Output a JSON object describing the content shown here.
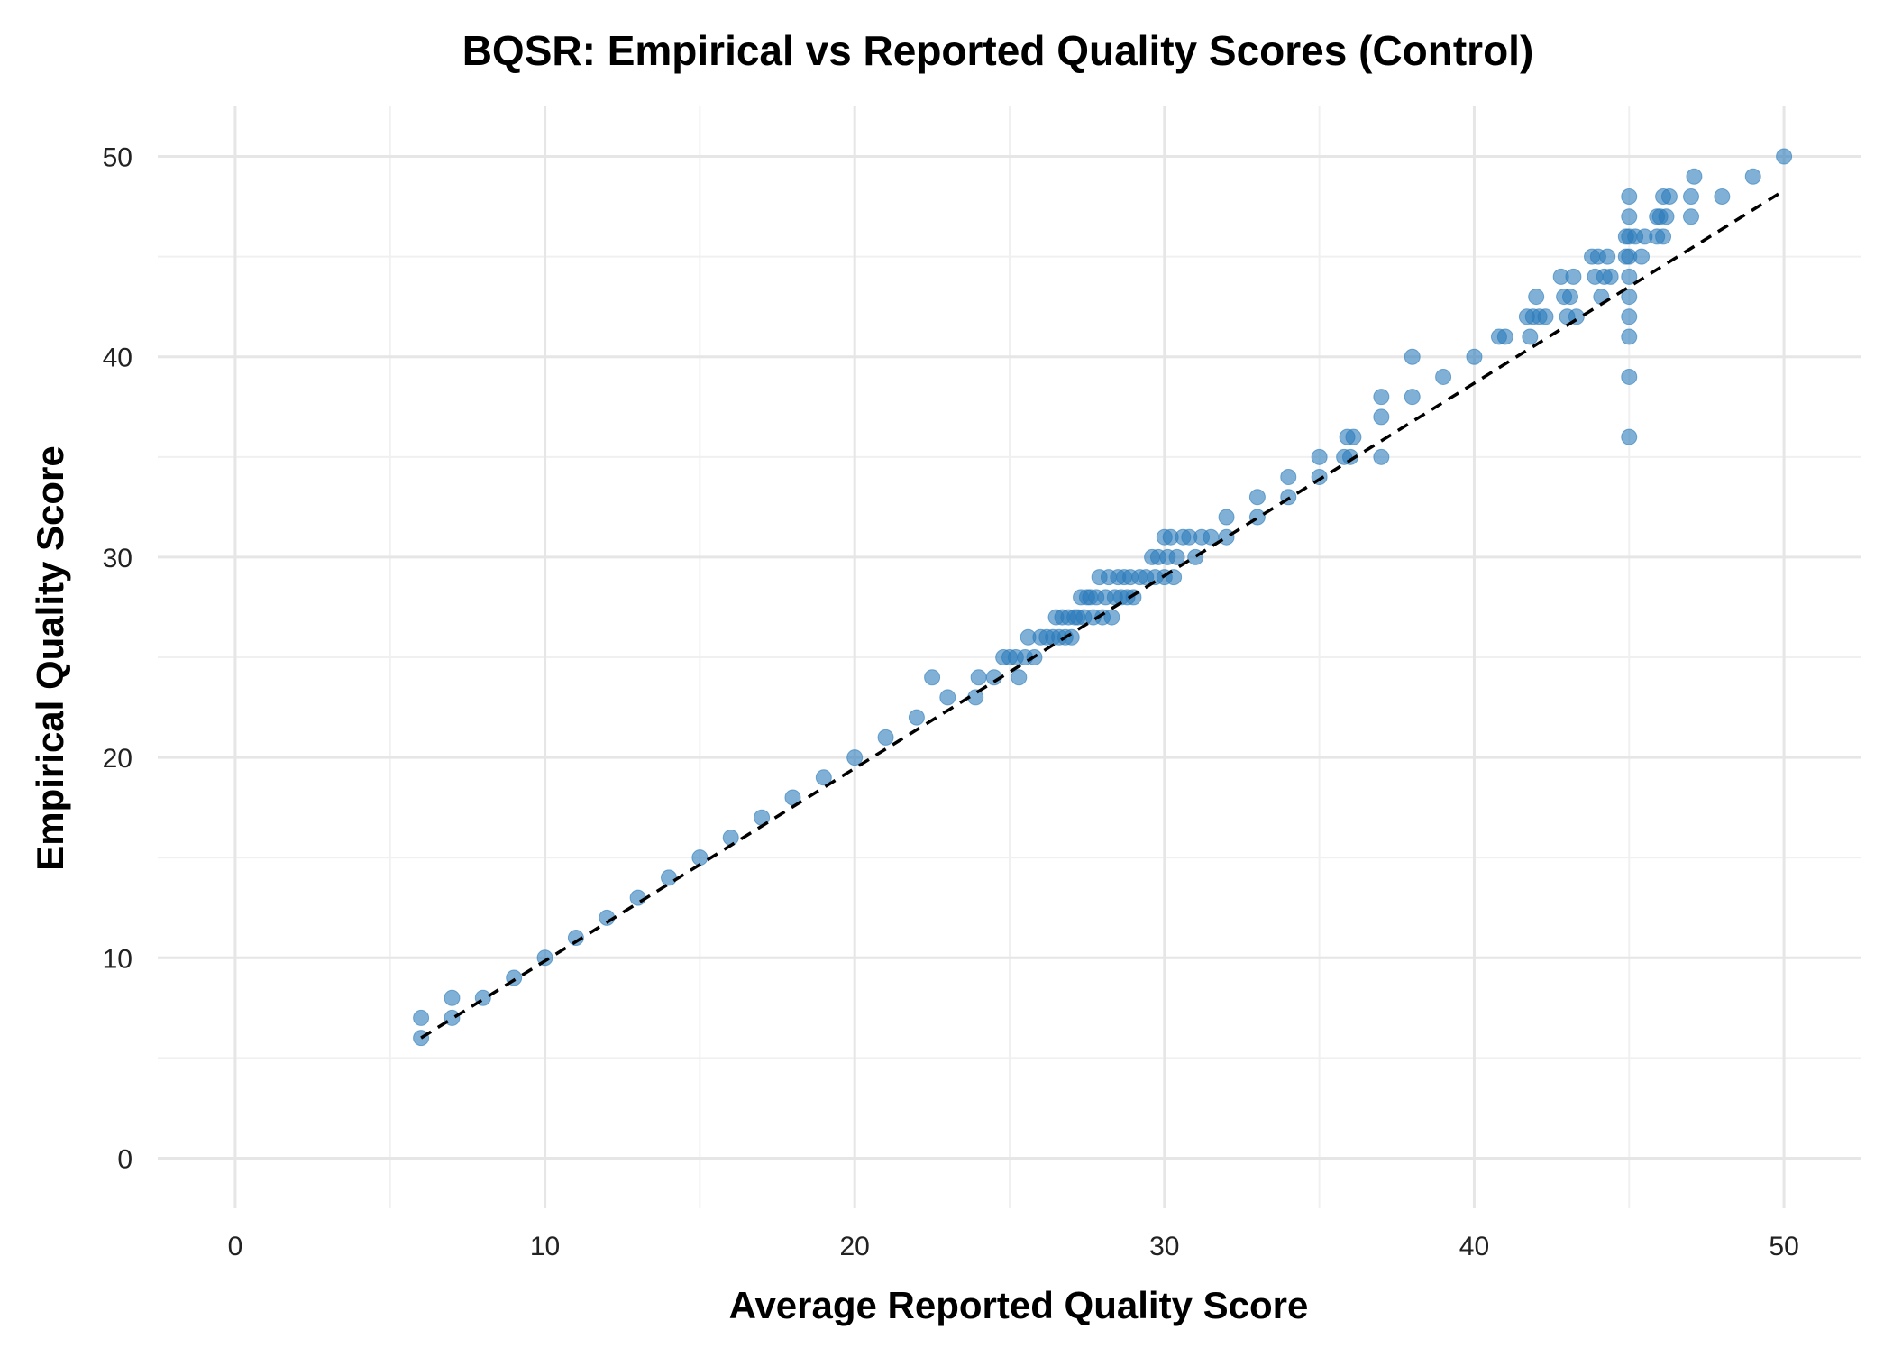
{
  "chart_data": {
    "type": "scatter",
    "title": "BQSR: Empirical vs Reported Quality Scores (Control)",
    "xlabel": "Average Reported Quality Score",
    "ylabel": "Empirical Quality Score",
    "xlim": [
      -2.5,
      52.5
    ],
    "ylim": [
      -2.5,
      52.5
    ],
    "x_ticks": [
      0,
      10,
      20,
      30,
      40,
      50
    ],
    "y_ticks": [
      0,
      10,
      20,
      30,
      40,
      50
    ],
    "x_tick_labels": [
      "0",
      "10",
      "20",
      "30",
      "40",
      "50"
    ],
    "y_tick_labels": [
      "0",
      "10",
      "20",
      "30",
      "40",
      "50"
    ],
    "grid": true,
    "legend": "none",
    "point_color": "#2b7bba",
    "reference_line": {
      "style": "dashed",
      "color": "#000000",
      "x": [
        6,
        50
      ],
      "y": [
        6,
        48.3
      ]
    },
    "points": [
      [
        6,
        6
      ],
      [
        6,
        7
      ],
      [
        7,
        7
      ],
      [
        7,
        8
      ],
      [
        8,
        8
      ],
      [
        9,
        9
      ],
      [
        10,
        10
      ],
      [
        11,
        11
      ],
      [
        12,
        12
      ],
      [
        13,
        13
      ],
      [
        14,
        14
      ],
      [
        15,
        15
      ],
      [
        16,
        16
      ],
      [
        17,
        17
      ],
      [
        18,
        18
      ],
      [
        19,
        19
      ],
      [
        20,
        20
      ],
      [
        21,
        21
      ],
      [
        22,
        22
      ],
      [
        22.5,
        24
      ],
      [
        23,
        23
      ],
      [
        23.9,
        23
      ],
      [
        24,
        24
      ],
      [
        24.5,
        24
      ],
      [
        24.8,
        25
      ],
      [
        25,
        25
      ],
      [
        25.2,
        25
      ],
      [
        25.3,
        24
      ],
      [
        25.5,
        25
      ],
      [
        25.6,
        26
      ],
      [
        25.8,
        25
      ],
      [
        26,
        26
      ],
      [
        26.2,
        26
      ],
      [
        26.4,
        26
      ],
      [
        26.5,
        27
      ],
      [
        26.6,
        26
      ],
      [
        26.7,
        27
      ],
      [
        26.8,
        26
      ],
      [
        26.9,
        27
      ],
      [
        27.0,
        26
      ],
      [
        27.1,
        27
      ],
      [
        27.2,
        27
      ],
      [
        27.3,
        28
      ],
      [
        27.4,
        27
      ],
      [
        27.5,
        28
      ],
      [
        27.6,
        28
      ],
      [
        27.7,
        27
      ],
      [
        27.8,
        28
      ],
      [
        27.9,
        29
      ],
      [
        28.0,
        27
      ],
      [
        28.1,
        28
      ],
      [
        28.2,
        29
      ],
      [
        28.3,
        27
      ],
      [
        28.4,
        28
      ],
      [
        28.5,
        29
      ],
      [
        28.6,
        28
      ],
      [
        28.7,
        29
      ],
      [
        28.8,
        28
      ],
      [
        28.9,
        29
      ],
      [
        29.0,
        28
      ],
      [
        29.2,
        29
      ],
      [
        29.4,
        29
      ],
      [
        29.6,
        30
      ],
      [
        29.7,
        29
      ],
      [
        29.8,
        30
      ],
      [
        30.0,
        31
      ],
      [
        30.0,
        29
      ],
      [
        30.1,
        30
      ],
      [
        30.2,
        31
      ],
      [
        30.3,
        29
      ],
      [
        30.4,
        30
      ],
      [
        30.6,
        31
      ],
      [
        30.8,
        31
      ],
      [
        31.0,
        30
      ],
      [
        31.2,
        31
      ],
      [
        31.5,
        31
      ],
      [
        32,
        32
      ],
      [
        32,
        31
      ],
      [
        33,
        33
      ],
      [
        33,
        32
      ],
      [
        34,
        34
      ],
      [
        34,
        33
      ],
      [
        35,
        35
      ],
      [
        35,
        34
      ],
      [
        35.8,
        35
      ],
      [
        35.9,
        36
      ],
      [
        36,
        35
      ],
      [
        36.1,
        36
      ],
      [
        37,
        38
      ],
      [
        37,
        37
      ],
      [
        37,
        35
      ],
      [
        38,
        40
      ],
      [
        38,
        38
      ],
      [
        39,
        39
      ],
      [
        40,
        40
      ],
      [
        40.8,
        41
      ],
      [
        41,
        41
      ],
      [
        41.7,
        42
      ],
      [
        41.8,
        41
      ],
      [
        41.9,
        42
      ],
      [
        42.1,
        42
      ],
      [
        42.3,
        42
      ],
      [
        42,
        43
      ],
      [
        42.8,
        44
      ],
      [
        42.9,
        43
      ],
      [
        43,
        42
      ],
      [
        43.1,
        43
      ],
      [
        43.2,
        44
      ],
      [
        43.3,
        42
      ],
      [
        43.8,
        45
      ],
      [
        43.9,
        44
      ],
      [
        44.0,
        45
      ],
      [
        44.1,
        43
      ],
      [
        44.2,
        44
      ],
      [
        44.3,
        45
      ],
      [
        44.4,
        44
      ],
      [
        44.9,
        45
      ],
      [
        44.9,
        46
      ],
      [
        45,
        36
      ],
      [
        45,
        39
      ],
      [
        45,
        41
      ],
      [
        45,
        42
      ],
      [
        45,
        43
      ],
      [
        45,
        44
      ],
      [
        45,
        45
      ],
      [
        45,
        46
      ],
      [
        45,
        47
      ],
      [
        45,
        48
      ],
      [
        45.2,
        46
      ],
      [
        45.4,
        45
      ],
      [
        45.5,
        46
      ],
      [
        45.9,
        46
      ],
      [
        45.9,
        47
      ],
      [
        46.0,
        47
      ],
      [
        46.1,
        46
      ],
      [
        46.1,
        48
      ],
      [
        46.2,
        47
      ],
      [
        46.3,
        48
      ],
      [
        47,
        47
      ],
      [
        47,
        48
      ],
      [
        47.1,
        49
      ],
      [
        48,
        48
      ],
      [
        49,
        49
      ],
      [
        50,
        50
      ]
    ]
  }
}
